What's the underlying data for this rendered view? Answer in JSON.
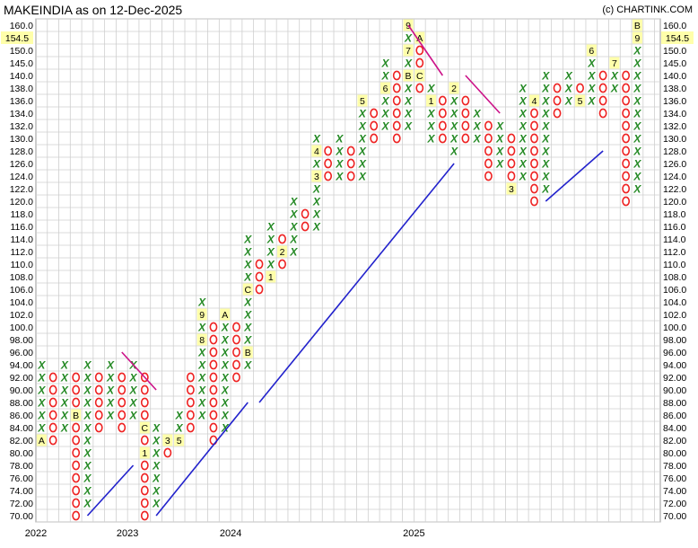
{
  "chart_data": {
    "type": "point-and-figure",
    "title": "MAKEINDIA as on 12-Dec-2025",
    "credit": "(c) CHARTINK.COM",
    "box_size": 2,
    "last_price_label": "154.5",
    "y_ticks": [
      "70.00",
      "72.00",
      "74.00",
      "76.00",
      "78.00",
      "80.00",
      "82.00",
      "84.00",
      "86.00",
      "88.00",
      "90.00",
      "92.00",
      "94.00",
      "96.00",
      "98.00",
      "100.0",
      "102.0",
      "104.0",
      "106.0",
      "108.0",
      "110.0",
      "112.0",
      "114.0",
      "116.0",
      "118.0",
      "120.0",
      "122.0",
      "124.0",
      "126.0",
      "128.0",
      "130.0",
      "132.0",
      "134.0",
      "136.0",
      "138.0",
      "140.0",
      "145.0",
      "150.0",
      "155.0",
      "160.0"
    ],
    "x_labels": [
      {
        "label": "2022",
        "col": 0
      },
      {
        "label": "2023",
        "col": 8
      },
      {
        "label": "2024",
        "col": 17
      },
      {
        "label": "2025",
        "col": 33
      }
    ],
    "columns": [
      {
        "t": "X",
        "lo": 84,
        "hi": 94,
        "m": {
          "82": "A"
        }
      },
      {
        "t": "O",
        "lo": 82,
        "hi": 92
      },
      {
        "t": "X",
        "lo": 84,
        "hi": 94
      },
      {
        "t": "O",
        "lo": 70,
        "hi": 92,
        "m": {
          "86": "B"
        }
      },
      {
        "t": "X",
        "lo": 72,
        "hi": 94
      },
      {
        "t": "O",
        "lo": 84,
        "hi": 92
      },
      {
        "t": "X",
        "lo": 86,
        "hi": 94
      },
      {
        "t": "O",
        "lo": 84,
        "hi": 92
      },
      {
        "t": "X",
        "lo": 86,
        "hi": 94
      },
      {
        "t": "O",
        "lo": 70,
        "hi": 92,
        "m": {
          "84": "C",
          "80": "1"
        }
      },
      {
        "t": "X",
        "lo": 72,
        "hi": 84
      },
      {
        "t": "O",
        "lo": 80,
        "hi": 82,
        "m": {
          "82": "3"
        }
      },
      {
        "t": "X",
        "lo": 82,
        "hi": 86,
        "m": {
          "82": "5"
        }
      },
      {
        "t": "O",
        "lo": 84,
        "hi": 92
      },
      {
        "t": "X",
        "lo": 86,
        "hi": 104,
        "m": {
          "102": "9",
          "98": "8"
        }
      },
      {
        "t": "O",
        "lo": 82,
        "hi": 100
      },
      {
        "t": "X",
        "lo": 84,
        "hi": 102,
        "m": {
          "102": "A"
        }
      },
      {
        "t": "O",
        "lo": 92,
        "hi": 100
      },
      {
        "t": "X",
        "lo": 94,
        "hi": 114,
        "m": {
          "106": "C",
          "96": "B"
        }
      },
      {
        "t": "O",
        "lo": 106,
        "hi": 110
      },
      {
        "t": "X",
        "lo": 108,
        "hi": 116,
        "m": {
          "108": "1"
        }
      },
      {
        "t": "O",
        "lo": 110,
        "hi": 114,
        "m": {
          "112": "2"
        }
      },
      {
        "t": "X",
        "lo": 112,
        "hi": 120
      },
      {
        "t": "O",
        "lo": 116,
        "hi": 118
      },
      {
        "t": "X",
        "lo": 116,
        "hi": 130,
        "m": {
          "128": "4",
          "124": "3"
        }
      },
      {
        "t": "O",
        "lo": 124,
        "hi": 128
      },
      {
        "t": "X",
        "lo": 124,
        "hi": 130
      },
      {
        "t": "O",
        "lo": 124,
        "hi": 128
      },
      {
        "t": "X",
        "lo": 124,
        "hi": 136,
        "m": {
          "136": "5"
        }
      },
      {
        "t": "O",
        "lo": 130,
        "hi": 134
      },
      {
        "t": "X",
        "lo": 132,
        "hi": 145,
        "m": {
          "138": "6"
        }
      },
      {
        "t": "O",
        "lo": 130,
        "hi": 140
      },
      {
        "t": "X",
        "lo": 132,
        "hi": 160,
        "m": {
          "160": "9",
          "150": "7",
          "140": "B"
        }
      },
      {
        "t": "O",
        "lo": 138,
        "hi": 155,
        "m": {
          "155": "A",
          "140": "C"
        }
      },
      {
        "t": "X",
        "lo": 130,
        "hi": 138,
        "m": {
          "136": "1"
        }
      },
      {
        "t": "O",
        "lo": 130,
        "hi": 136
      },
      {
        "t": "X",
        "lo": 128,
        "hi": 138,
        "m": {
          "138": "2"
        }
      },
      {
        "t": "O",
        "lo": 130,
        "hi": 136
      },
      {
        "t": "X",
        "lo": 130,
        "hi": 134
      },
      {
        "t": "O",
        "lo": 124,
        "hi": 132
      },
      {
        "t": "X",
        "lo": 126,
        "hi": 132
      },
      {
        "t": "O",
        "lo": 122,
        "hi": 130,
        "m": {
          "122": "3"
        }
      },
      {
        "t": "X",
        "lo": 124,
        "hi": 138
      },
      {
        "t": "O",
        "lo": 120,
        "hi": 136,
        "m": {
          "136": "4"
        }
      },
      {
        "t": "X",
        "lo": 122,
        "hi": 140
      },
      {
        "t": "O",
        "lo": 134,
        "hi": 138
      },
      {
        "t": "X",
        "lo": 136,
        "hi": 140
      },
      {
        "t": "O",
        "lo": 136,
        "hi": 138,
        "m": {
          "136": "5"
        }
      },
      {
        "t": "X",
        "lo": 136,
        "hi": 150,
        "m": {
          "150": "6"
        }
      },
      {
        "t": "O",
        "lo": 134,
        "hi": 140
      },
      {
        "t": "X",
        "lo": 138,
        "hi": 145,
        "m": {
          "145": "7"
        }
      },
      {
        "t": "O",
        "lo": 120,
        "hi": 140
      },
      {
        "t": "X",
        "lo": 122,
        "hi": 160,
        "m": {
          "160": "B",
          "155": "9"
        }
      }
    ],
    "trendlines": [
      {
        "kind": "support",
        "color": "#2222cc",
        "from": {
          "col": 4,
          "price": 70
        },
        "to": {
          "col": 8,
          "price": 78
        }
      },
      {
        "kind": "support",
        "color": "#2222cc",
        "from": {
          "col": 10,
          "price": 70
        },
        "to": {
          "col": 18,
          "price": 88
        }
      },
      {
        "kind": "support",
        "color": "#2222cc",
        "from": {
          "col": 19,
          "price": 88
        },
        "to": {
          "col": 36,
          "price": 126
        }
      },
      {
        "kind": "support",
        "color": "#2222cc",
        "from": {
          "col": 44,
          "price": 120
        },
        "to": {
          "col": 49,
          "price": 128
        }
      },
      {
        "kind": "resistance",
        "color": "#cc1188",
        "from": {
          "col": 7,
          "price": 96
        },
        "to": {
          "col": 10,
          "price": 90
        }
      },
      {
        "kind": "resistance",
        "color": "#cc1188",
        "from": {
          "col": 32,
          "price": 160
        },
        "to": {
          "col": 35,
          "price": 140
        }
      },
      {
        "kind": "resistance",
        "color": "#cc1188",
        "from": {
          "col": 37,
          "price": 140
        },
        "to": {
          "col": 40,
          "price": 134
        }
      }
    ],
    "colors": {
      "x": "#228822",
      "o": "#ee2222",
      "month_bg": "#ffffaa",
      "grid": "#cfcfcf"
    }
  }
}
